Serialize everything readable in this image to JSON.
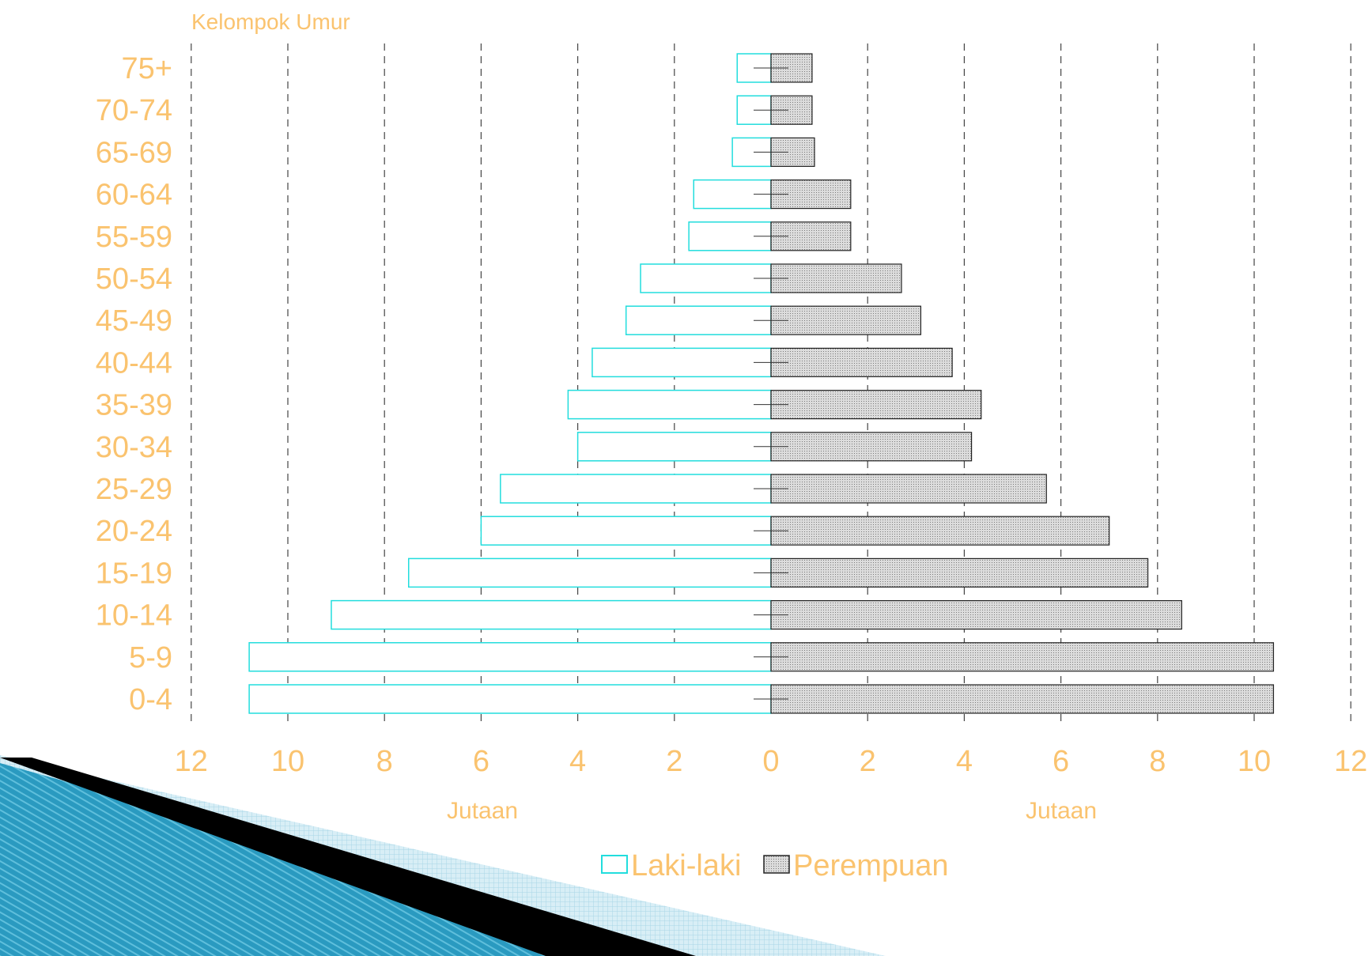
{
  "colors": {
    "label": "#FAC36F",
    "male_stroke": "#22DDDD",
    "female_fill": "#D0D0D0",
    "female_stroke": "#222222",
    "grid": "#444444",
    "deco_blue": "#1F8FB3",
    "deco_dark": "#0E5E80",
    "deco_light": "#BFE3EF"
  },
  "chart_data": {
    "type": "bar",
    "orientation": "horizontal-population-pyramid",
    "title": "Kelompok Umur",
    "xlabel_left": "Jutaan",
    "xlabel_right": "Jutaan",
    "xlim": [
      0,
      12
    ],
    "xticks": [
      "12",
      "10",
      "8",
      "6",
      "4",
      "2",
      "0",
      "2",
      "4",
      "6",
      "8",
      "10",
      "12"
    ],
    "grid": true,
    "legend_position": "bottom",
    "categories": [
      "75+",
      "70-74",
      "65-69",
      "60-64",
      "55-59",
      "50-54",
      "45-49",
      "40-44",
      "35-39",
      "30-34",
      "25-29",
      "20-24",
      "15-19",
      "10-14",
      "5-9",
      "0-4"
    ],
    "series": [
      {
        "name": "Laki-laki",
        "side": "left",
        "values": [
          0.7,
          0.7,
          0.8,
          1.6,
          1.7,
          2.7,
          3.0,
          3.7,
          4.2,
          4.0,
          5.6,
          6.0,
          7.5,
          9.1,
          10.8,
          10.8
        ]
      },
      {
        "name": "Perempuan",
        "side": "right",
        "values": [
          0.85,
          0.85,
          0.9,
          1.65,
          1.65,
          2.7,
          3.1,
          3.75,
          4.35,
          4.15,
          5.7,
          7.0,
          7.8,
          8.5,
          10.4,
          10.4
        ]
      }
    ]
  }
}
